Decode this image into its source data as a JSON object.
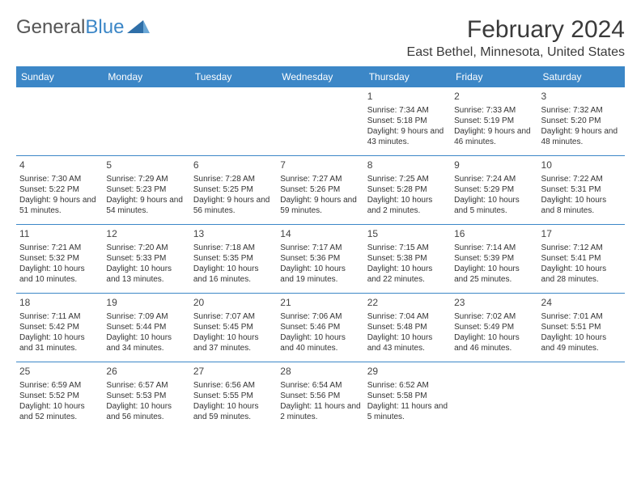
{
  "brand": {
    "text1": "General",
    "text2": "Blue"
  },
  "title": "February 2024",
  "location": "East Bethel, Minnesota, United States",
  "colors": {
    "header_bg": "#3c87c7",
    "header_text": "#ffffff",
    "divider": "#3c87c7",
    "body_text": "#333333",
    "title_text": "#3a3a3a"
  },
  "dayNames": [
    "Sunday",
    "Monday",
    "Tuesday",
    "Wednesday",
    "Thursday",
    "Friday",
    "Saturday"
  ],
  "weeks": [
    [
      {
        "num": "",
        "sunrise": "",
        "sunset": "",
        "daylight": ""
      },
      {
        "num": "",
        "sunrise": "",
        "sunset": "",
        "daylight": ""
      },
      {
        "num": "",
        "sunrise": "",
        "sunset": "",
        "daylight": ""
      },
      {
        "num": "",
        "sunrise": "",
        "sunset": "",
        "daylight": ""
      },
      {
        "num": "1",
        "sunrise": "Sunrise: 7:34 AM",
        "sunset": "Sunset: 5:18 PM",
        "daylight": "Daylight: 9 hours and 43 minutes."
      },
      {
        "num": "2",
        "sunrise": "Sunrise: 7:33 AM",
        "sunset": "Sunset: 5:19 PM",
        "daylight": "Daylight: 9 hours and 46 minutes."
      },
      {
        "num": "3",
        "sunrise": "Sunrise: 7:32 AM",
        "sunset": "Sunset: 5:20 PM",
        "daylight": "Daylight: 9 hours and 48 minutes."
      }
    ],
    [
      {
        "num": "4",
        "sunrise": "Sunrise: 7:30 AM",
        "sunset": "Sunset: 5:22 PM",
        "daylight": "Daylight: 9 hours and 51 minutes."
      },
      {
        "num": "5",
        "sunrise": "Sunrise: 7:29 AM",
        "sunset": "Sunset: 5:23 PM",
        "daylight": "Daylight: 9 hours and 54 minutes."
      },
      {
        "num": "6",
        "sunrise": "Sunrise: 7:28 AM",
        "sunset": "Sunset: 5:25 PM",
        "daylight": "Daylight: 9 hours and 56 minutes."
      },
      {
        "num": "7",
        "sunrise": "Sunrise: 7:27 AM",
        "sunset": "Sunset: 5:26 PM",
        "daylight": "Daylight: 9 hours and 59 minutes."
      },
      {
        "num": "8",
        "sunrise": "Sunrise: 7:25 AM",
        "sunset": "Sunset: 5:28 PM",
        "daylight": "Daylight: 10 hours and 2 minutes."
      },
      {
        "num": "9",
        "sunrise": "Sunrise: 7:24 AM",
        "sunset": "Sunset: 5:29 PM",
        "daylight": "Daylight: 10 hours and 5 minutes."
      },
      {
        "num": "10",
        "sunrise": "Sunrise: 7:22 AM",
        "sunset": "Sunset: 5:31 PM",
        "daylight": "Daylight: 10 hours and 8 minutes."
      }
    ],
    [
      {
        "num": "11",
        "sunrise": "Sunrise: 7:21 AM",
        "sunset": "Sunset: 5:32 PM",
        "daylight": "Daylight: 10 hours and 10 minutes."
      },
      {
        "num": "12",
        "sunrise": "Sunrise: 7:20 AM",
        "sunset": "Sunset: 5:33 PM",
        "daylight": "Daylight: 10 hours and 13 minutes."
      },
      {
        "num": "13",
        "sunrise": "Sunrise: 7:18 AM",
        "sunset": "Sunset: 5:35 PM",
        "daylight": "Daylight: 10 hours and 16 minutes."
      },
      {
        "num": "14",
        "sunrise": "Sunrise: 7:17 AM",
        "sunset": "Sunset: 5:36 PM",
        "daylight": "Daylight: 10 hours and 19 minutes."
      },
      {
        "num": "15",
        "sunrise": "Sunrise: 7:15 AM",
        "sunset": "Sunset: 5:38 PM",
        "daylight": "Daylight: 10 hours and 22 minutes."
      },
      {
        "num": "16",
        "sunrise": "Sunrise: 7:14 AM",
        "sunset": "Sunset: 5:39 PM",
        "daylight": "Daylight: 10 hours and 25 minutes."
      },
      {
        "num": "17",
        "sunrise": "Sunrise: 7:12 AM",
        "sunset": "Sunset: 5:41 PM",
        "daylight": "Daylight: 10 hours and 28 minutes."
      }
    ],
    [
      {
        "num": "18",
        "sunrise": "Sunrise: 7:11 AM",
        "sunset": "Sunset: 5:42 PM",
        "daylight": "Daylight: 10 hours and 31 minutes."
      },
      {
        "num": "19",
        "sunrise": "Sunrise: 7:09 AM",
        "sunset": "Sunset: 5:44 PM",
        "daylight": "Daylight: 10 hours and 34 minutes."
      },
      {
        "num": "20",
        "sunrise": "Sunrise: 7:07 AM",
        "sunset": "Sunset: 5:45 PM",
        "daylight": "Daylight: 10 hours and 37 minutes."
      },
      {
        "num": "21",
        "sunrise": "Sunrise: 7:06 AM",
        "sunset": "Sunset: 5:46 PM",
        "daylight": "Daylight: 10 hours and 40 minutes."
      },
      {
        "num": "22",
        "sunrise": "Sunrise: 7:04 AM",
        "sunset": "Sunset: 5:48 PM",
        "daylight": "Daylight: 10 hours and 43 minutes."
      },
      {
        "num": "23",
        "sunrise": "Sunrise: 7:02 AM",
        "sunset": "Sunset: 5:49 PM",
        "daylight": "Daylight: 10 hours and 46 minutes."
      },
      {
        "num": "24",
        "sunrise": "Sunrise: 7:01 AM",
        "sunset": "Sunset: 5:51 PM",
        "daylight": "Daylight: 10 hours and 49 minutes."
      }
    ],
    [
      {
        "num": "25",
        "sunrise": "Sunrise: 6:59 AM",
        "sunset": "Sunset: 5:52 PM",
        "daylight": "Daylight: 10 hours and 52 minutes."
      },
      {
        "num": "26",
        "sunrise": "Sunrise: 6:57 AM",
        "sunset": "Sunset: 5:53 PM",
        "daylight": "Daylight: 10 hours and 56 minutes."
      },
      {
        "num": "27",
        "sunrise": "Sunrise: 6:56 AM",
        "sunset": "Sunset: 5:55 PM",
        "daylight": "Daylight: 10 hours and 59 minutes."
      },
      {
        "num": "28",
        "sunrise": "Sunrise: 6:54 AM",
        "sunset": "Sunset: 5:56 PM",
        "daylight": "Daylight: 11 hours and 2 minutes."
      },
      {
        "num": "29",
        "sunrise": "Sunrise: 6:52 AM",
        "sunset": "Sunset: 5:58 PM",
        "daylight": "Daylight: 11 hours and 5 minutes."
      },
      {
        "num": "",
        "sunrise": "",
        "sunset": "",
        "daylight": ""
      },
      {
        "num": "",
        "sunrise": "",
        "sunset": "",
        "daylight": ""
      }
    ]
  ]
}
